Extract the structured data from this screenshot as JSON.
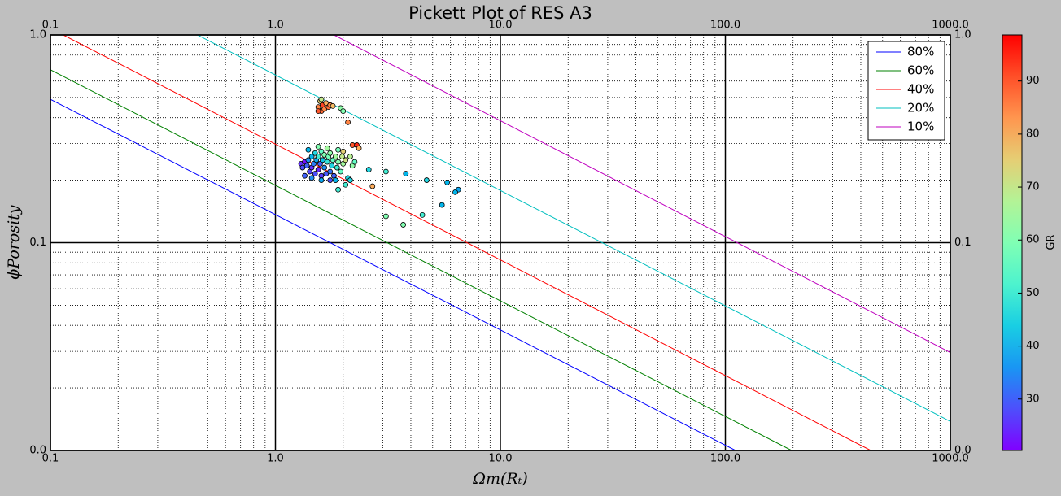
{
  "chart_data": {
    "type": "pickett",
    "title": "Pickett Plot of RES A3",
    "xlabel": "Ωm(Rₜ)",
    "ylabel": "ϕPorosity",
    "log_x": true,
    "log_y": true,
    "grid": true,
    "legend_position": "upper right",
    "xlim": [
      0.1,
      1000
    ],
    "ylim": [
      0.01,
      1
    ],
    "xticks": [
      0.1,
      {
        "value": 1,
        "label": "1.0"
      },
      {
        "value": 10,
        "label": "10.0"
      },
      {
        "value": 100,
        "label": "100.0"
      },
      {
        "value": 1000,
        "label": "1000.0"
      }
    ],
    "yticks": [
      {
        "value": 0.01,
        "label": "0.0"
      },
      0.1,
      {
        "value": 1,
        "label": "1.0"
      }
    ],
    "lines": [
      {
        "name": "80%",
        "color": "#0000ff",
        "x": [
          0.1,
          111
        ],
        "y": [
          0.49,
          0.01
        ]
      },
      {
        "name": "60%",
        "color": "#008000",
        "x": [
          0.1,
          197
        ],
        "y": [
          0.68,
          0.01
        ]
      },
      {
        "name": "40%",
        "color": "#ff0000",
        "x": [
          0.114,
          443
        ],
        "y": [
          1,
          0.01
        ]
      },
      {
        "name": "20%",
        "color": "#00bfbf",
        "x": [
          0.45,
          1000
        ],
        "y": [
          1,
          0.0138
        ]
      },
      {
        "name": "10%",
        "color": "#bf00bf",
        "x": [
          1.82,
          1000
        ],
        "y": [
          1,
          0.0296
        ]
      }
    ],
    "scatter": {
      "colormap": "rainbow",
      "x": [
        1.3,
        1.32,
        1.35,
        1.38,
        1.4,
        1.42,
        1.45,
        1.45,
        1.48,
        1.5,
        1.5,
        1.52,
        1.55,
        1.55,
        1.58,
        1.6,
        1.6,
        1.62,
        1.65,
        1.65,
        1.68,
        1.7,
        1.72,
        1.75,
        1.75,
        1.78,
        1.8,
        1.82,
        1.85,
        1.88,
        1.9,
        1.95,
        1.98,
        2.0,
        2.05,
        2.1,
        2.15,
        2.2,
        2.25,
        1.4,
        1.55,
        1.7,
        1.9,
        2.0,
        1.35,
        1.45,
        1.6,
        1.75,
        1.85,
        2.05,
        2.15,
        1.55,
        1.58,
        1.6,
        1.62,
        1.65,
        1.68,
        1.72,
        1.75,
        1.55,
        1.8,
        1.95,
        1.6,
        2.6,
        3.1,
        3.8,
        4.7,
        5.8,
        6.5,
        6.3,
        5.5,
        4.5,
        3.1,
        3.7,
        2.7,
        2.1,
        2.2,
        2.3,
        2.35,
        1.9,
        2.0
      ],
      "y": [
        0.24,
        0.23,
        0.245,
        0.235,
        0.25,
        0.22,
        0.26,
        0.23,
        0.24,
        0.215,
        0.27,
        0.25,
        0.225,
        0.26,
        0.24,
        0.21,
        0.275,
        0.25,
        0.23,
        0.265,
        0.215,
        0.245,
        0.26,
        0.22,
        0.27,
        0.235,
        0.25,
        0.21,
        0.26,
        0.23,
        0.245,
        0.22,
        0.26,
        0.24,
        0.25,
        0.205,
        0.26,
        0.235,
        0.245,
        0.28,
        0.29,
        0.285,
        0.28,
        0.275,
        0.21,
        0.205,
        0.2,
        0.2,
        0.2,
        0.19,
        0.2,
        0.45,
        0.48,
        0.43,
        0.46,
        0.44,
        0.47,
        0.45,
        0.46,
        0.43,
        0.455,
        0.445,
        0.49,
        0.225,
        0.22,
        0.215,
        0.2,
        0.195,
        0.18,
        0.175,
        0.152,
        0.136,
        0.134,
        0.122,
        0.187,
        0.38,
        0.295,
        0.295,
        0.285,
        0.18,
        0.43
      ],
      "c": [
        25,
        28,
        22,
        30,
        35,
        27,
        40,
        25,
        33,
        28,
        45,
        38,
        24,
        50,
        30,
        26,
        55,
        42,
        35,
        60,
        29,
        48,
        58,
        32,
        62,
        45,
        55,
        30,
        65,
        50,
        60,
        55,
        70,
        65,
        72,
        45,
        68,
        62,
        55,
        40,
        60,
        65,
        58,
        75,
        30,
        35,
        38,
        28,
        40,
        50,
        45,
        85,
        75,
        88,
        92,
        85,
        80,
        88,
        85,
        90,
        78,
        62,
        70,
        45,
        50,
        40,
        45,
        40,
        38,
        40,
        40,
        50,
        60,
        60,
        80,
        85,
        90,
        95,
        80,
        50,
        60
      ]
    },
    "colorbar": {
      "label": "GR",
      "lim": [
        20.3,
        98.7
      ],
      "ticks": [
        30,
        40,
        50,
        60,
        70,
        80,
        90
      ]
    }
  }
}
